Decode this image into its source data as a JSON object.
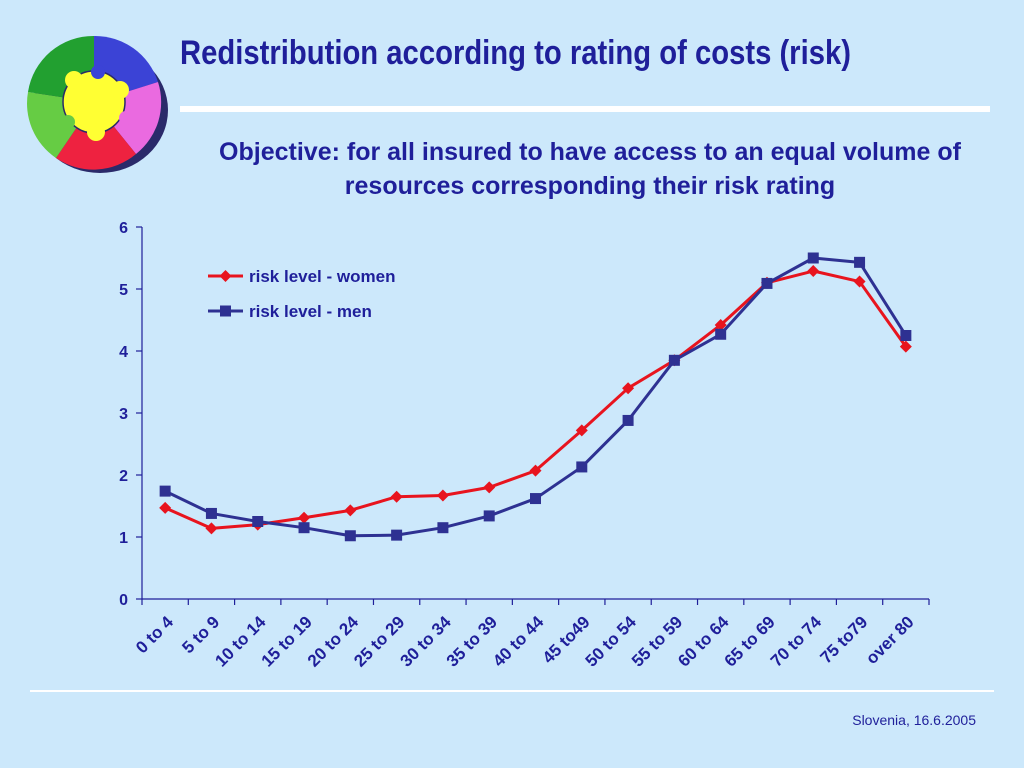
{
  "slide": {
    "title": "Redistribution according to rating of costs (risk)",
    "subtitle": "Objective: for all insured to have access to an equal volume of resources corresponding their risk rating",
    "footer": "Slovenia, 16.6.2005",
    "logo": "puzzle-pieces-icon"
  },
  "colors": {
    "background": "#cce8fb",
    "text": "#1f1f9a",
    "women": "#e8141e",
    "men": "#2e3192"
  },
  "chart_data": {
    "type": "line",
    "categories": [
      "0 to 4",
      "5 to 9",
      "10 to 14",
      "15 to 19",
      "20 to 24",
      "25 to 29",
      "30 to 34",
      "35 to 39",
      "40 to 44",
      "45 to49",
      "50 to 54",
      "55 to 59",
      "60 to 64",
      "65 to 69",
      "70 to 74",
      "75 to79",
      "over 80"
    ],
    "series": [
      {
        "name": "risk level - women",
        "marker": "diamond",
        "color": "#e8141e",
        "values": [
          1.47,
          1.14,
          1.2,
          1.31,
          1.43,
          1.65,
          1.67,
          1.8,
          2.07,
          2.72,
          3.4,
          3.85,
          4.42,
          5.1,
          5.29,
          5.12,
          4.07
        ]
      },
      {
        "name": "risk level - men",
        "marker": "square",
        "color": "#2e3192",
        "values": [
          1.74,
          1.38,
          1.25,
          1.15,
          1.02,
          1.03,
          1.15,
          1.34,
          1.62,
          2.13,
          2.88,
          3.85,
          4.27,
          5.09,
          5.5,
          5.43,
          4.25
        ]
      }
    ],
    "y_ticks": [
      "0",
      "1",
      "2",
      "3",
      "4",
      "5",
      "6"
    ],
    "ylim": [
      0,
      6
    ],
    "grid": false,
    "legend_position": "top-left"
  }
}
